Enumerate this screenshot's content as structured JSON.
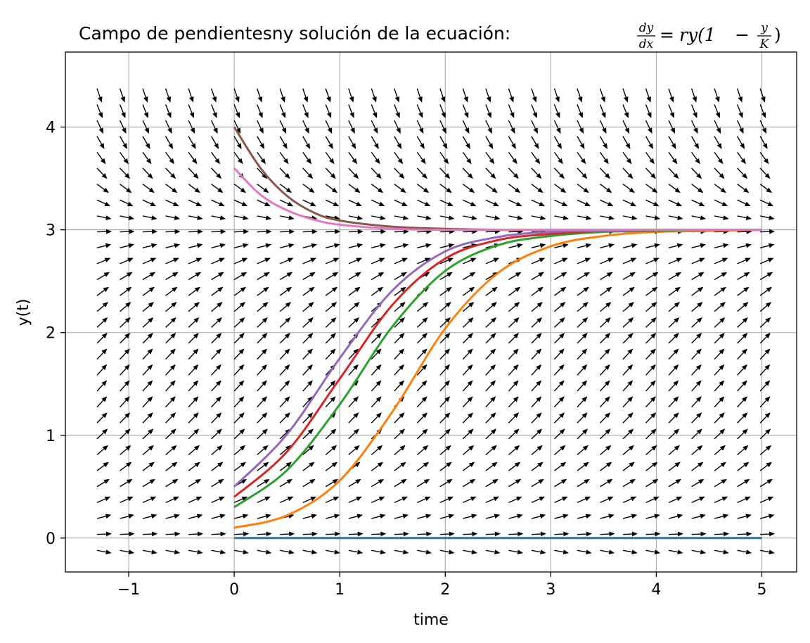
{
  "chart_data": {
    "type": "line",
    "title": {
      "text": "Campo de pendientesny solución de la ecuación: ",
      "equation": {
        "lhs_num": "dy",
        "lhs_den": "dx",
        "eq": "=",
        "rhs_prefix": "ry(1",
        "minus": "−",
        "frac_num": "y",
        "frac_den": "K",
        "rhs_suffix": ")"
      }
    },
    "xlabel": "time",
    "ylabel": "y(t)",
    "xlim": [
      -1.6,
      5.33
    ],
    "ylim": [
      -0.33,
      4.73
    ],
    "xticks": [
      -1,
      0,
      1,
      2,
      3,
      4,
      5
    ],
    "xtick_labels": [
      "−1",
      "0",
      "1",
      "2",
      "3",
      "4",
      "5"
    ],
    "yticks": [
      0,
      1,
      2,
      3,
      4
    ],
    "ytick_labels": [
      "0",
      "1",
      "2",
      "3",
      "4"
    ],
    "grid": true,
    "slope_field": {
      "r": 1.5,
      "K": 3,
      "t_start": -1.3,
      "t_step": 0.2167,
      "t_count": 30,
      "y_start": -0.12,
      "y_step": 0.155,
      "y_count": 30,
      "color": "#000000"
    },
    "series": [
      {
        "color": "#1f77b4",
        "x": [
          0,
          5
        ],
        "y": [
          0,
          0
        ]
      },
      {
        "color": "#ff7f0e",
        "x": [
          0,
          0.5,
          1,
          1.5,
          2,
          2.5,
          3,
          3.5,
          4,
          4.5,
          5
        ],
        "y": [
          0.1,
          0.22,
          0.56,
          1.23,
          2.04,
          2.58,
          2.84,
          2.94,
          2.98,
          2.99,
          3.0
        ]
      },
      {
        "color": "#2ca02c",
        "x": [
          0,
          0.5,
          1,
          1.5,
          2,
          2.5,
          3,
          3.5,
          4,
          4.5,
          5
        ],
        "y": [
          0.3,
          0.66,
          1.3,
          2.06,
          2.6,
          2.85,
          2.94,
          2.98,
          2.99,
          3.0,
          3.0
        ]
      },
      {
        "color": "#d62728",
        "x": [
          0,
          0.5,
          1,
          1.5,
          2,
          2.5,
          3,
          3.5,
          4,
          4.5,
          5
        ],
        "y": [
          0.4,
          0.84,
          1.55,
          2.27,
          2.72,
          2.9,
          2.96,
          2.99,
          3.0,
          3.0,
          3.0
        ]
      },
      {
        "color": "#9467bd",
        "x": [
          0,
          0.5,
          1,
          1.5,
          2,
          2.5,
          3,
          3.5,
          4,
          4.5,
          5
        ],
        "y": [
          0.5,
          1.01,
          1.75,
          2.41,
          2.79,
          2.93,
          2.98,
          2.99,
          3.0,
          3.0,
          3.0
        ]
      },
      {
        "color": "#8c564b",
        "x": [
          0,
          0.25,
          0.5,
          0.75,
          1,
          1.5,
          2,
          2.5,
          3,
          4,
          5
        ],
        "y": [
          4.0,
          3.6,
          3.33,
          3.17,
          3.09,
          3.03,
          3.01,
          3.0,
          3.0,
          3.0,
          3.0
        ]
      },
      {
        "color": "#e377c2",
        "x": [
          0,
          0.25,
          0.5,
          0.75,
          1,
          1.5,
          2,
          2.5,
          3,
          4,
          5
        ],
        "y": [
          3.6,
          3.34,
          3.19,
          3.1,
          3.05,
          3.01,
          3.0,
          3.0,
          3.0,
          3.0,
          3.0
        ]
      }
    ]
  }
}
